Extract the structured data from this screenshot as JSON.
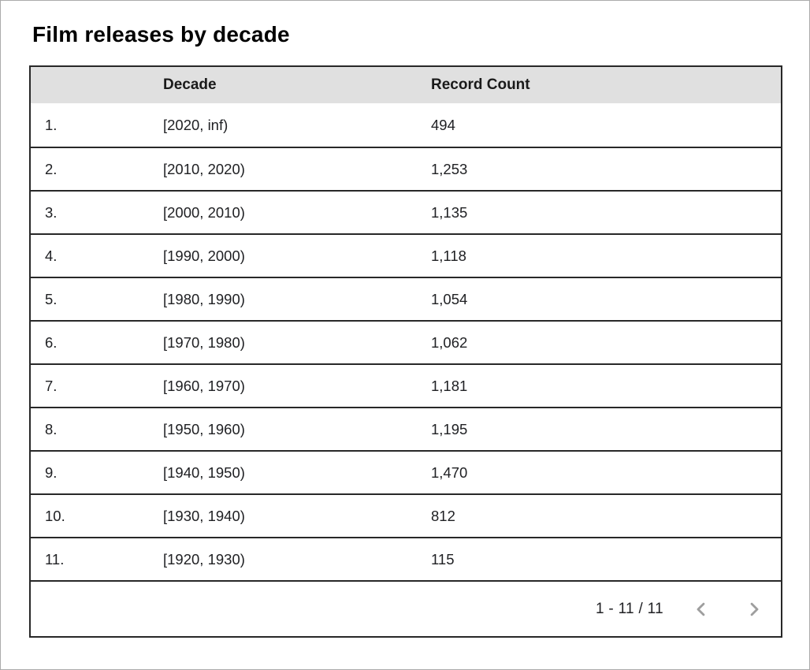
{
  "page": {
    "title": "Film releases by decade"
  },
  "table": {
    "header": {
      "index_label": "",
      "decade_label": "Decade",
      "count_label": "Record Count"
    },
    "rows": [
      {
        "index": "1.",
        "decade": "[2020, inf)",
        "count": "494"
      },
      {
        "index": "2.",
        "decade": "[2010, 2020)",
        "count": "1,253"
      },
      {
        "index": "3.",
        "decade": "[2000, 2010)",
        "count": "1,135"
      },
      {
        "index": "4.",
        "decade": "[1990, 2000)",
        "count": "1,118"
      },
      {
        "index": "5.",
        "decade": "[1980, 1990)",
        "count": "1,054"
      },
      {
        "index": "6.",
        "decade": "[1970, 1980)",
        "count": "1,062"
      },
      {
        "index": "7.",
        "decade": "[1960, 1970)",
        "count": "1,181"
      },
      {
        "index": "8.",
        "decade": "[1950, 1960)",
        "count": "1,195"
      },
      {
        "index": "9.",
        "decade": "[1940, 1950)",
        "count": "1,470"
      },
      {
        "index": "10.",
        "decade": "[1930, 1940)",
        "count": "812"
      },
      {
        "index": "11.",
        "decade": "[1920, 1930)",
        "count": "115"
      }
    ]
  },
  "pagination": {
    "range_label": "1 - 11 / 11",
    "prev_icon": "chevron-left",
    "next_icon": "chevron-right"
  },
  "colors": {
    "header_bg": "#e0e0e0",
    "table_border": "#282828",
    "text": "#202124",
    "chevron": "#9e9e9e",
    "page_edge": "#ababab"
  },
  "chart_data": {
    "type": "table",
    "title": "Film releases by decade",
    "columns": [
      "Decade",
      "Record Count"
    ],
    "categories": [
      "[2020, inf)",
      "[2010, 2020)",
      "[2000, 2010)",
      "[1990, 2000)",
      "[1980, 1990)",
      "[1970, 1980)",
      "[1960, 1970)",
      "[1950, 1960)",
      "[1940, 1950)",
      "[1930, 1940)",
      "[1920, 1930)"
    ],
    "values": [
      494,
      1253,
      1135,
      1118,
      1054,
      1062,
      1181,
      1195,
      1470,
      812,
      115
    ],
    "pagination_label": "1 - 11 / 11"
  }
}
